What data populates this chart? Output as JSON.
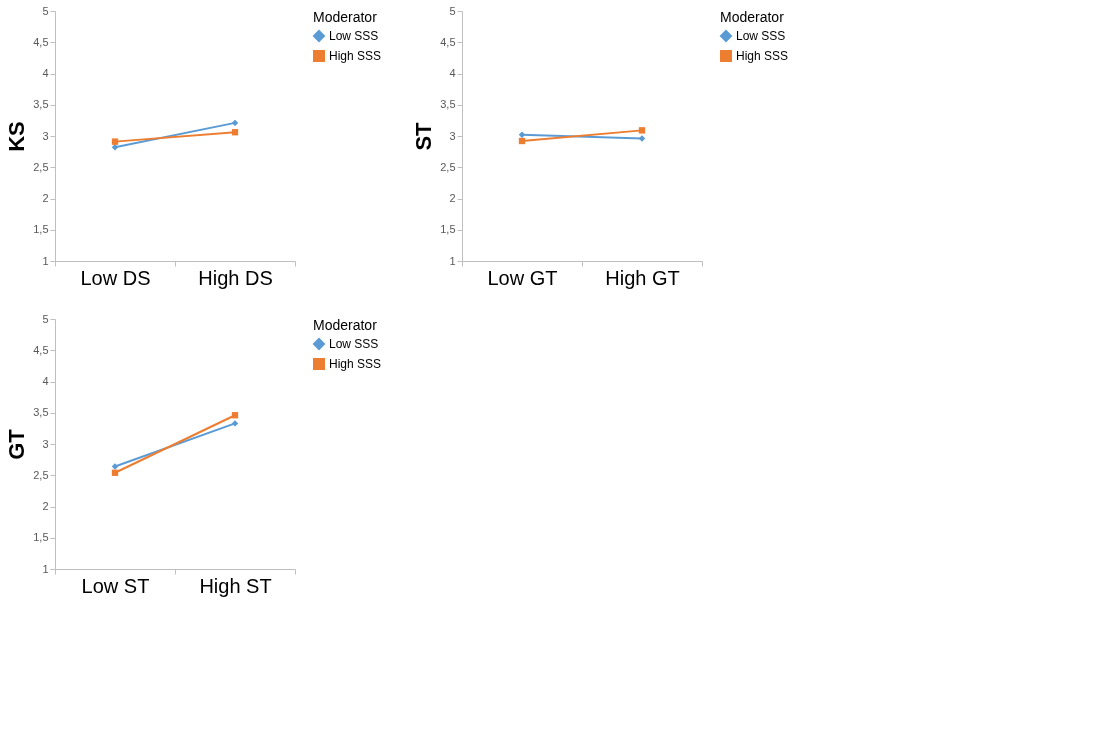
{
  "chart_data": [
    {
      "type": "line",
      "ylabel": "KS",
      "categories": [
        "Low DS",
        "High DS"
      ],
      "legend_title": "Moderator",
      "legend": "right",
      "grid": false,
      "ylim": [
        1,
        5
      ],
      "yticks": [
        1,
        {
          "value": 1.5,
          "label": "1,5"
        },
        2,
        {
          "value": 2.5,
          "label": "2,5"
        },
        3,
        {
          "value": 3.5,
          "label": "3,5"
        },
        4,
        {
          "value": 4.5,
          "label": "4,5"
        },
        5
      ],
      "series": [
        {
          "name": "Low SSS",
          "color": "#5b9bd5",
          "marker": "diamond",
          "values": [
            2.82,
            3.21
          ]
        },
        {
          "name": "High SSS",
          "color": "#ed7d31",
          "marker": "square",
          "values": [
            2.91,
            3.06
          ]
        }
      ]
    },
    {
      "type": "line",
      "ylabel": "ST",
      "categories": [
        "Low GT",
        "High GT"
      ],
      "legend_title": "Moderator",
      "legend": "right",
      "grid": false,
      "ylim": [
        1,
        5
      ],
      "yticks": [
        1,
        {
          "value": 1.5,
          "label": "1,5"
        },
        2,
        {
          "value": 2.5,
          "label": "2,5"
        },
        3,
        {
          "value": 3.5,
          "label": "3,5"
        },
        4,
        {
          "value": 4.5,
          "label": "4,5"
        },
        5
      ],
      "series": [
        {
          "name": "Low SSS",
          "color": "#5b9bd5",
          "marker": "diamond",
          "values": [
            3.02,
            2.96
          ]
        },
        {
          "name": "High SSS",
          "color": "#ed7d31",
          "marker": "square",
          "values": [
            2.92,
            3.09
          ]
        }
      ]
    },
    {
      "type": "line",
      "ylabel": "GT",
      "categories": [
        "Low ST",
        "High ST"
      ],
      "legend_title": "Moderator",
      "legend": "right",
      "grid": false,
      "ylim": [
        1,
        5
      ],
      "yticks": [
        1,
        {
          "value": 1.5,
          "label": "1,5"
        },
        2,
        {
          "value": 2.5,
          "label": "2,5"
        },
        3,
        {
          "value": 3.5,
          "label": "3,5"
        },
        4,
        {
          "value": 4.5,
          "label": "4,5"
        },
        5
      ],
      "series": [
        {
          "name": "Low SSS",
          "color": "#5b9bd5",
          "marker": "diamond",
          "values": [
            2.64,
            3.33
          ]
        },
        {
          "name": "High SSS",
          "color": "#ed7d31",
          "marker": "square",
          "values": [
            2.54,
            3.46
          ]
        }
      ]
    }
  ]
}
